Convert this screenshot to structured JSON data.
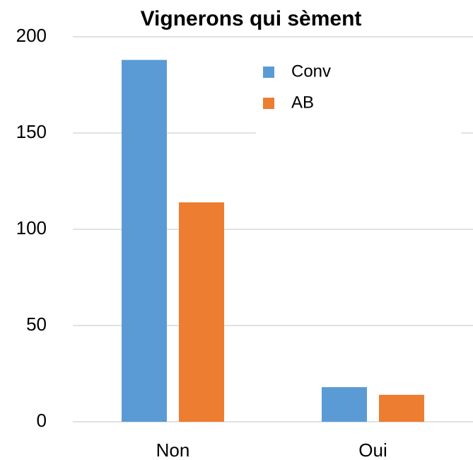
{
  "chart_data": {
    "type": "bar",
    "title": "Vignerons qui sèment",
    "categories": [
      "Non",
      "Oui"
    ],
    "series": [
      {
        "name": "Conv",
        "color": "#5b9bd5",
        "values": [
          188,
          18
        ]
      },
      {
        "name": "AB",
        "color": "#ed7d31",
        "values": [
          114,
          14
        ]
      }
    ],
    "ylim": [
      0,
      200
    ],
    "yticks": [
      0,
      50,
      100,
      150,
      200
    ],
    "grid": true,
    "legend": "upper right"
  }
}
